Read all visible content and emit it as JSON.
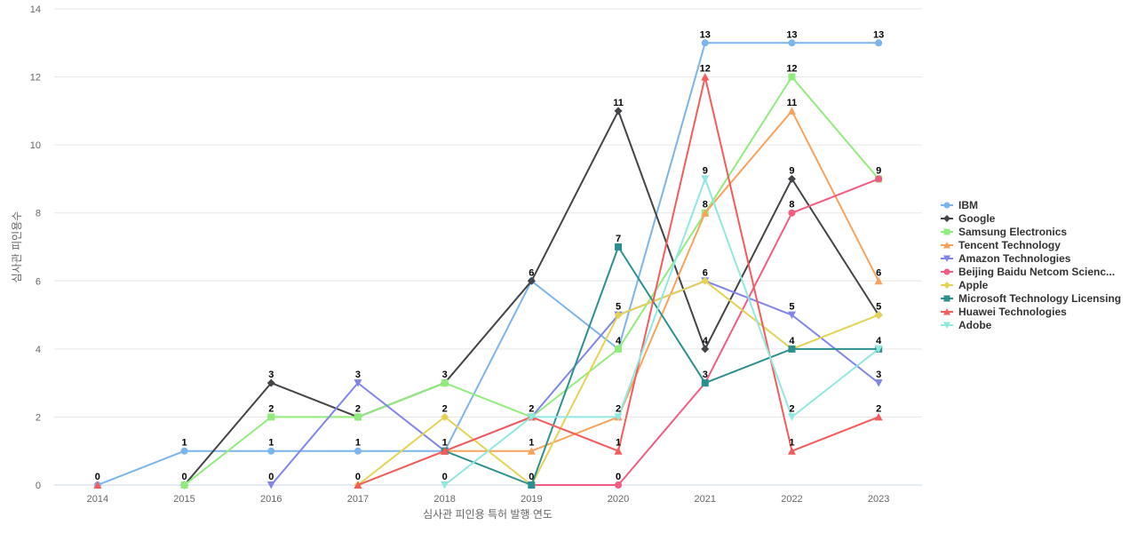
{
  "chart_data": {
    "type": "line",
    "xlabel": "심사관 피인용 특허 발행 연도",
    "ylabel": "심사관 피인용수",
    "categories": [
      "2014",
      "2015",
      "2016",
      "2017",
      "2018",
      "2019",
      "2020",
      "2021",
      "2022",
      "2023"
    ],
    "ylim": [
      0,
      14
    ],
    "yticks": [
      0,
      2,
      4,
      6,
      8,
      10,
      12,
      14
    ],
    "grid": true,
    "legend_position": "right",
    "series": [
      {
        "name": "IBM",
        "color": "#7cb5ec",
        "marker": "circle",
        "values": [
          0,
          1,
          1,
          1,
          1,
          6,
          4,
          13,
          13,
          13
        ]
      },
      {
        "name": "Google",
        "color": "#434348",
        "marker": "diamond",
        "values": [
          null,
          0,
          3,
          2,
          3,
          6,
          11,
          4,
          9,
          5
        ]
      },
      {
        "name": "Samsung Electronics",
        "color": "#90ed7d",
        "marker": "square",
        "values": [
          null,
          0,
          2,
          2,
          3,
          2,
          4,
          8,
          12,
          9
        ]
      },
      {
        "name": "Tencent Technology",
        "color": "#f7a35c",
        "marker": "triangle",
        "values": [
          null,
          null,
          null,
          0,
          1,
          1,
          2,
          8,
          11,
          6
        ]
      },
      {
        "name": "Amazon Technologies",
        "color": "#8085e9",
        "marker": "triangle-down",
        "values": [
          null,
          null,
          0,
          3,
          1,
          2,
          5,
          6,
          5,
          3
        ]
      },
      {
        "name": "Beijing Baidu Netcom Scienc...",
        "color": "#f15c80",
        "marker": "circle",
        "values": [
          null,
          null,
          null,
          null,
          null,
          0,
          0,
          3,
          8,
          9
        ]
      },
      {
        "name": "Apple",
        "color": "#e4d354",
        "marker": "diamond",
        "values": [
          null,
          null,
          null,
          0,
          2,
          0,
          5,
          6,
          4,
          5
        ]
      },
      {
        "name": "Microsoft Technology Licensing",
        "color": "#2b908f",
        "marker": "square",
        "values": [
          null,
          null,
          null,
          null,
          1,
          0,
          7,
          3,
          4,
          4
        ]
      },
      {
        "name": "Huawei Technologies",
        "color": "#f45b5b",
        "marker": "triangle",
        "values": [
          0,
          null,
          null,
          0,
          1,
          2,
          1,
          12,
          1,
          2
        ]
      },
      {
        "name": "Adobe",
        "color": "#91e8e1",
        "marker": "triangle-down",
        "values": [
          null,
          null,
          null,
          null,
          0,
          2,
          2,
          9,
          2,
          4
        ]
      }
    ],
    "data_labels": [
      {
        "x": "2014",
        "y": 0,
        "text": "0"
      },
      {
        "x": "2015",
        "y": 1,
        "text": "1"
      },
      {
        "x": "2015",
        "y": 0,
        "text": "0"
      },
      {
        "x": "2016",
        "y": 3,
        "text": "3"
      },
      {
        "x": "2016",
        "y": 2,
        "text": "2"
      },
      {
        "x": "2016",
        "y": 1,
        "text": "1"
      },
      {
        "x": "2016",
        "y": 0,
        "text": "0"
      },
      {
        "x": "2017",
        "y": 3,
        "text": "3"
      },
      {
        "x": "2017",
        "y": 2,
        "text": "2"
      },
      {
        "x": "2017",
        "y": 1,
        "text": "1"
      },
      {
        "x": "2017",
        "y": 0,
        "text": "0"
      },
      {
        "x": "2018",
        "y": 3,
        "text": "3"
      },
      {
        "x": "2018",
        "y": 2,
        "text": "2"
      },
      {
        "x": "2018",
        "y": 1,
        "text": "1"
      },
      {
        "x": "2018",
        "y": 0,
        "text": "0"
      },
      {
        "x": "2019",
        "y": 6,
        "text": "6"
      },
      {
        "x": "2019",
        "y": 2,
        "text": "2"
      },
      {
        "x": "2019",
        "y": 1,
        "text": "1"
      },
      {
        "x": "2019",
        "y": 0,
        "text": "0"
      },
      {
        "x": "2020",
        "y": 11,
        "text": "11"
      },
      {
        "x": "2020",
        "y": 7,
        "text": "7"
      },
      {
        "x": "2020",
        "y": 5,
        "text": "5"
      },
      {
        "x": "2020",
        "y": 4,
        "text": "4"
      },
      {
        "x": "2020",
        "y": 2,
        "text": "2"
      },
      {
        "x": "2020",
        "y": 1,
        "text": "1"
      },
      {
        "x": "2020",
        "y": 0,
        "text": "0"
      },
      {
        "x": "2021",
        "y": 13,
        "text": "13"
      },
      {
        "x": "2021",
        "y": 12,
        "text": "12"
      },
      {
        "x": "2021",
        "y": 9,
        "text": "9"
      },
      {
        "x": "2021",
        "y": 8,
        "text": "8"
      },
      {
        "x": "2021",
        "y": 6,
        "text": "6"
      },
      {
        "x": "2021",
        "y": 4,
        "text": "4"
      },
      {
        "x": "2021",
        "y": 3,
        "text": "3"
      },
      {
        "x": "2022",
        "y": 13,
        "text": "13"
      },
      {
        "x": "2022",
        "y": 12,
        "text": "12"
      },
      {
        "x": "2022",
        "y": 11,
        "text": "11"
      },
      {
        "x": "2022",
        "y": 9,
        "text": "9"
      },
      {
        "x": "2022",
        "y": 8,
        "text": "8"
      },
      {
        "x": "2022",
        "y": 5,
        "text": "5"
      },
      {
        "x": "2022",
        "y": 4,
        "text": "4"
      },
      {
        "x": "2022",
        "y": 2,
        "text": "2"
      },
      {
        "x": "2022",
        "y": 1,
        "text": "1"
      },
      {
        "x": "2023",
        "y": 13,
        "text": "13"
      },
      {
        "x": "2023",
        "y": 9,
        "text": "9"
      },
      {
        "x": "2023",
        "y": 6,
        "text": "6"
      },
      {
        "x": "2023",
        "y": 5,
        "text": "5"
      },
      {
        "x": "2023",
        "y": 4,
        "text": "4"
      },
      {
        "x": "2023",
        "y": 3,
        "text": "3"
      },
      {
        "x": "2023",
        "y": 2,
        "text": "2"
      }
    ]
  }
}
